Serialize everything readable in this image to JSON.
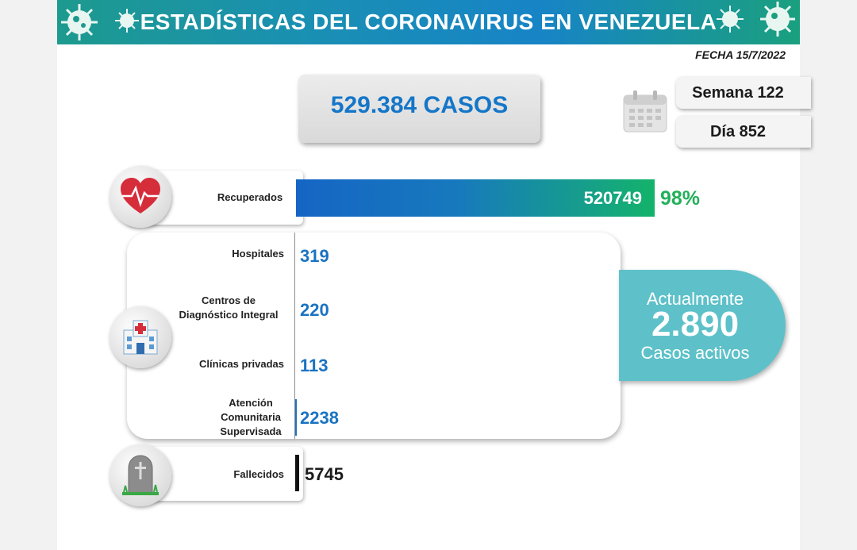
{
  "header": {
    "title": "ESTADÍSTICAS DEL CORONAVIRUS EN VENEZUELA",
    "fecha": "FECHA 15/7/2022"
  },
  "summary": {
    "casos": "529.384 CASOS",
    "semana": "Semana 122",
    "dia": "Día 852"
  },
  "recuperados": {
    "label": "Recuperados",
    "value": "520749",
    "pct": "98%"
  },
  "hospitalizacion": [
    {
      "label": "Hospitales",
      "value": "319"
    },
    {
      "label": "Centros de Diagnóstico Integral",
      "value": "220"
    },
    {
      "label": "Clínicas privadas",
      "value": "113"
    },
    {
      "label": "Atención Comunitaria Supervisada",
      "value": "2238"
    }
  ],
  "activos": {
    "line1": "Actualmente",
    "value": "2.890",
    "line2": "Casos activos"
  },
  "fallecidos": {
    "label": "Fallecidos",
    "value": "5745"
  },
  "chart_data": {
    "type": "bar",
    "categories": [
      "Recuperados",
      "Hospitales",
      "Centros de Diagnóstico Integral",
      "Clínicas privadas",
      "Atención Comunitaria Supervisada",
      "Fallecidos"
    ],
    "values": [
      520749,
      319,
      220,
      113,
      2238,
      5745
    ],
    "total_cases": 529384,
    "recovered_pct": 98,
    "active_cases": 2890,
    "week": 122,
    "day": 852,
    "date": "15/7/2022"
  },
  "colors": {
    "accent_blue": "#1576c8",
    "recovered_green": "#21b05a",
    "active_teal": "#5ec1c9"
  }
}
